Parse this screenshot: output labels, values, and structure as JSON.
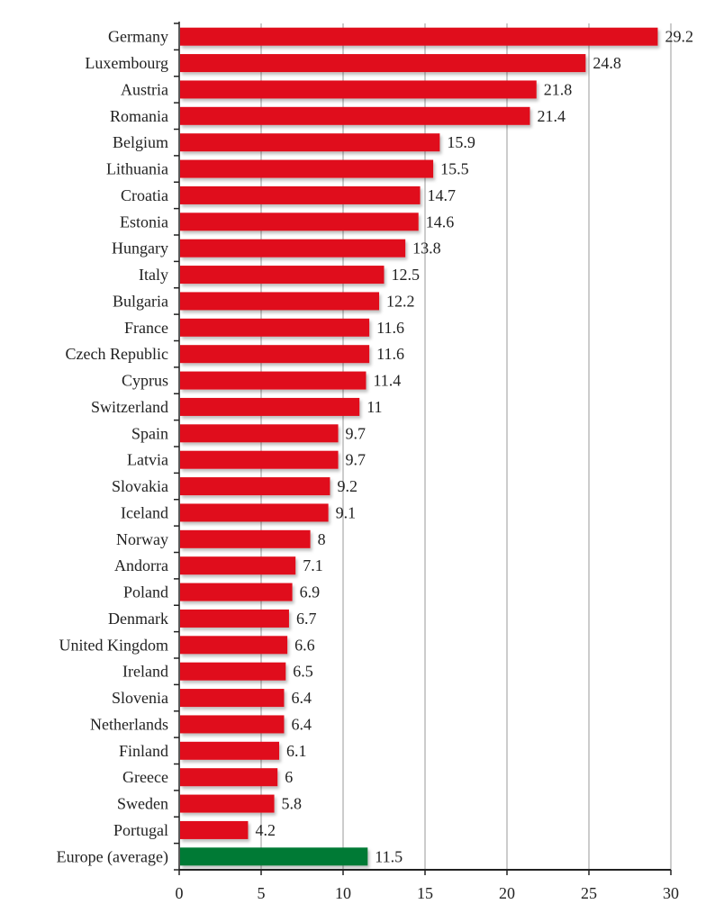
{
  "chart_data": {
    "type": "bar",
    "orientation": "horizontal",
    "title": "",
    "xlabel": "",
    "ylabel": "",
    "xlim": [
      0,
      30
    ],
    "xticks": [
      0,
      5,
      10,
      15,
      20,
      25,
      30
    ],
    "grid": "vertical",
    "legend": "none",
    "categories": [
      "Germany",
      "Luxembourg",
      "Austria",
      "Romania",
      "Belgium",
      "Lithuania",
      "Croatia",
      "Estonia",
      "Hungary",
      "Italy",
      "Bulgaria",
      "France",
      "Czech Republic",
      "Cyprus",
      "Switzerland",
      "Spain",
      "Latvia",
      "Slovakia",
      "Iceland",
      "Norway",
      "Andorra",
      "Poland",
      "Denmark",
      "United Kingdom",
      "Ireland",
      "Slovenia",
      "Netherlands",
      "Finland",
      "Greece",
      "Sweden",
      "Portugal",
      "Europe (average)"
    ],
    "values": [
      29.2,
      24.8,
      21.8,
      21.4,
      15.9,
      15.5,
      14.7,
      14.6,
      13.8,
      12.5,
      12.2,
      11.6,
      11.6,
      11.4,
      11,
      9.7,
      9.7,
      9.2,
      9.1,
      8,
      7.1,
      6.9,
      6.7,
      6.6,
      6.5,
      6.4,
      6.4,
      6.1,
      6,
      5.8,
      4.2,
      11.5
    ],
    "value_labels": [
      "29.2",
      "24.8",
      "21.8",
      "21.4",
      "15.9",
      "15.5",
      "14.7",
      "14.6",
      "13.8",
      "12.5",
      "12.2",
      "11.6",
      "11.6",
      "11.4",
      "11",
      "9.7",
      "9.7",
      "9.2",
      "9.1",
      "8",
      "7.1",
      "6.9",
      "6.7",
      "6.6",
      "6.5",
      "6.4",
      "6.4",
      "6.1",
      "6",
      "5.8",
      "4.2",
      "11.5"
    ],
    "colors": {
      "country": "#e0111a",
      "average": "#007a35",
      "grid": "#999999",
      "axis": "#222222"
    },
    "highlight_category": "Europe (average)"
  }
}
